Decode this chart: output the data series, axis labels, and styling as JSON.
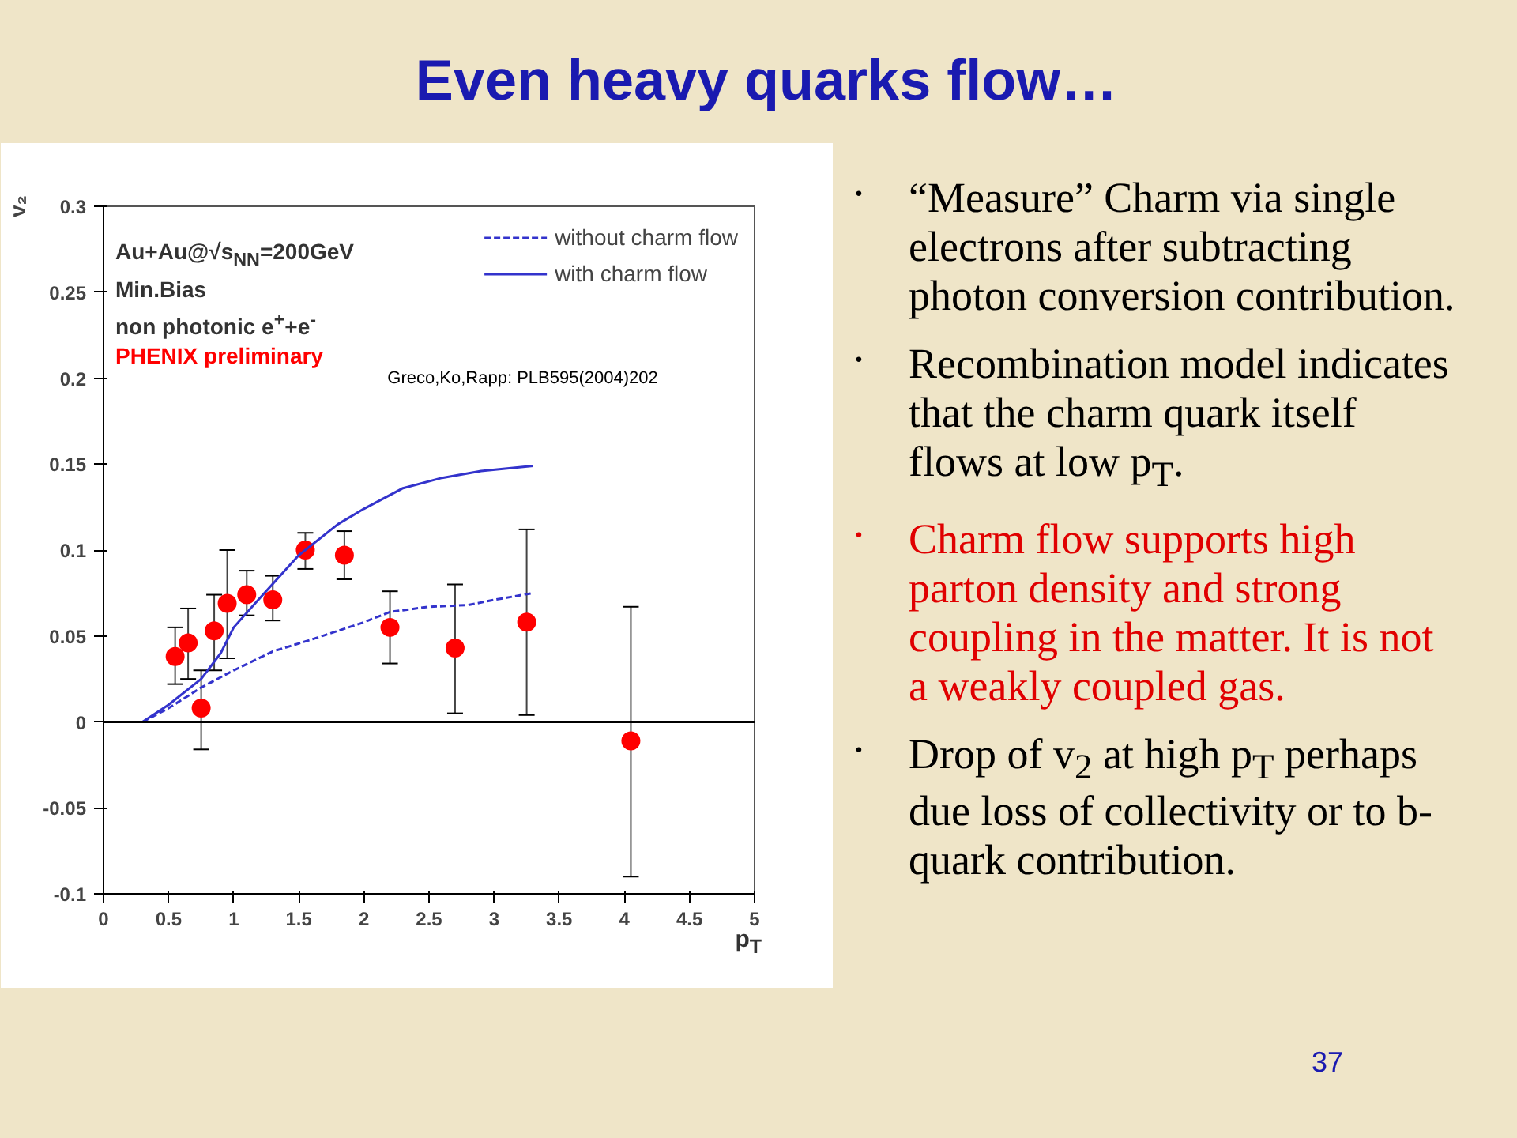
{
  "chart_data": {
    "type": "scatter",
    "title": "Even heavy quarks flow…",
    "xlabel": "p$_{T}$",
    "ylabel": "v₂",
    "xlim": [
      0,
      5
    ],
    "ylim": [
      -0.1,
      0.3
    ],
    "xticks": [
      0,
      0.5,
      1,
      1.5,
      2,
      2.5,
      3,
      3.5,
      4,
      4.5,
      5
    ],
    "yticks": [
      -0.1,
      -0.05,
      0,
      0.05,
      0.1,
      0.15,
      0.2,
      0.25,
      0.3
    ],
    "grid": false,
    "legend": "top right",
    "ref_lines": [
      {
        "axis": "y",
        "value": 0,
        "color": "#000000"
      }
    ],
    "series": [
      {
        "name": "PHENIX preliminary",
        "marker": "circle",
        "color": "#ff0000",
        "x": [
          0.55,
          0.65,
          0.75,
          0.85,
          0.95,
          1.1,
          1.3,
          1.55,
          1.85,
          2.2,
          2.7,
          3.25,
          4.05
        ],
        "values": [
          0.038,
          0.046,
          0.008,
          0.053,
          0.069,
          0.074,
          0.071,
          0.1,
          0.097,
          0.055,
          0.043,
          0.058,
          -0.011
        ],
        "errors": [
          [
            0.022,
            0.055
          ],
          [
            0.025,
            0.066
          ],
          [
            -0.016,
            0.03
          ],
          [
            0.03,
            0.074
          ],
          [
            0.037,
            0.1
          ],
          [
            0.062,
            0.088
          ],
          [
            0.059,
            0.085
          ],
          [
            0.089,
            0.11
          ],
          [
            0.083,
            0.111
          ],
          [
            0.034,
            0.076
          ],
          [
            0.005,
            0.08
          ],
          [
            0.004,
            0.112
          ],
          [
            -0.09,
            0.067
          ]
        ]
      },
      {
        "name": "without charm flow",
        "type": "line",
        "line_style": "dashed",
        "color": "#3333cc",
        "x": [
          0.3,
          0.5,
          0.75,
          1.0,
          1.3,
          1.6,
          2.0,
          2.2,
          2.5,
          2.8,
          3.0,
          3.3
        ],
        "values": [
          0,
          0.008,
          0.02,
          0.03,
          0.041,
          0.048,
          0.058,
          0.064,
          0.067,
          0.068,
          0.071,
          0.075
        ]
      },
      {
        "name": "with charm flow",
        "type": "line",
        "line_style": "solid",
        "color": "#3333cc",
        "x": [
          0.3,
          0.5,
          0.75,
          0.9,
          1.0,
          1.2,
          1.5,
          1.8,
          2.0,
          2.3,
          2.6,
          2.9,
          3.3
        ],
        "values": [
          0,
          0.01,
          0.025,
          0.04,
          0.055,
          0.072,
          0.097,
          0.115,
          0.124,
          0.136,
          0.142,
          0.146,
          0.149
        ]
      }
    ],
    "annotations": [
      "Au+Au@√s$_{NN}$=200GeV",
      "Min.Bias",
      "non photonic e$^{+}$+e$^{-}$",
      "Greco,Ko,Rapp: PLB595(2004)202",
      "• “Measure” Charm via single electrons after subtracting photon conversion contribution.",
      "• Recombination model indicates that the charm quark itself flows at low p$_{T}$.",
      "• Charm flow supports high parton density and strong coupling in the matter. It is not a weakly coupled gas.",
      "• Drop of v$_{2}$ at high p$_{T}$ perhaps due loss of collectivity or to b-quark contribution.",
      "37"
    ]
  }
}
